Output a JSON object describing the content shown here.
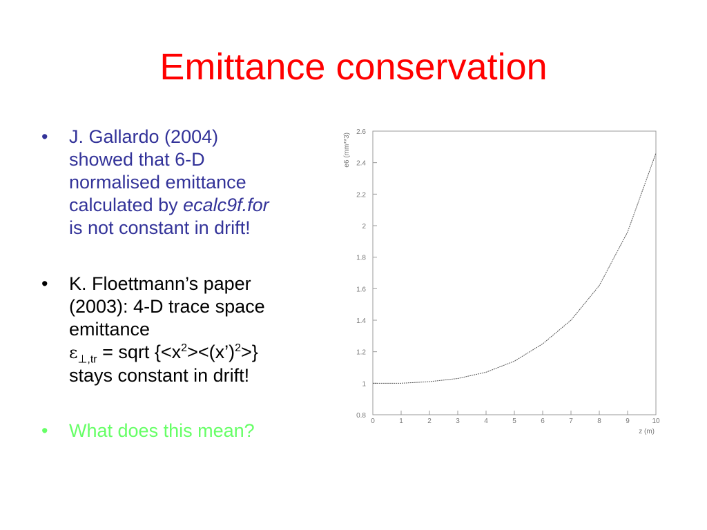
{
  "title": "Emittance conservation",
  "bullets": [
    {
      "lines": [
        "J. Gallardo (2004)",
        "showed that 6-D",
        "normalised emittance",
        "calculated by ",
        "ecalc9f.for",
        "is not constant in drift!"
      ]
    },
    {
      "lines": [
        "K. Floettmann’s paper",
        "(2003): 4-D trace space",
        "emittance",
        "ε",
        "⊥,tr",
        " = sqrt {<x",
        "2",
        "><(x’)",
        "2",
        ">}",
        "stays constant in drift!"
      ]
    },
    {
      "lines": [
        "What does this mean?"
      ]
    }
  ],
  "chart_data": {
    "type": "line",
    "x_label": "z (m)",
    "y_label": "e6 (mm**3)",
    "x": [
      0,
      1,
      2,
      3,
      4,
      5,
      6,
      7,
      8,
      9,
      10
    ],
    "values": [
      1.0,
      1.0,
      1.01,
      1.03,
      1.07,
      1.14,
      1.25,
      1.4,
      1.62,
      1.96,
      2.46
    ],
    "color": "#555555",
    "xlim": [
      0,
      10
    ],
    "xticks": [
      0,
      1,
      2,
      3,
      4,
      5,
      6,
      7,
      8,
      9,
      10
    ],
    "ylim": [
      0.8,
      2.6
    ],
    "yticks": [
      0.8,
      1,
      1.2,
      1.4,
      1.6,
      1.8,
      2,
      2.2,
      2.4,
      2.6
    ]
  }
}
